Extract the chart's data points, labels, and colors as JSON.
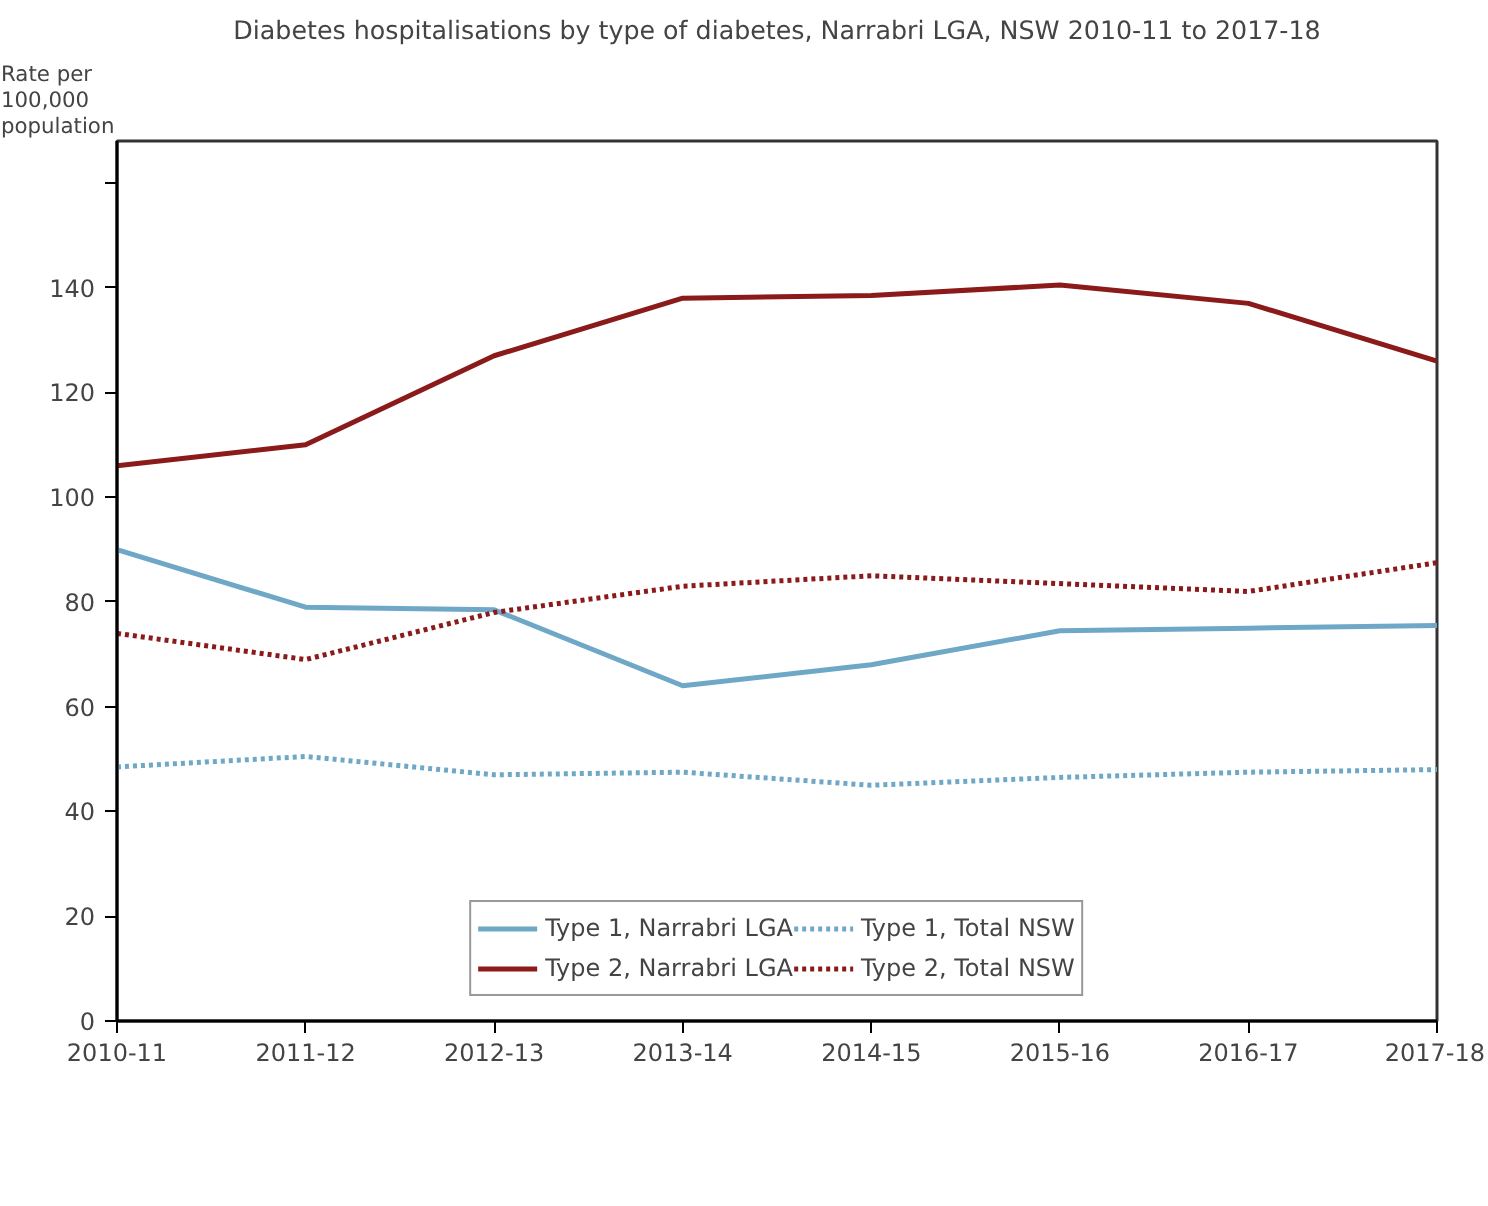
{
  "chart_data": {
    "type": "line",
    "title": "Diabetes hospitalisations by type of diabetes, Narrabri LGA, NSW 2010-11 to 2017-18",
    "ylabel": "Rate per 100,000 population",
    "categories": [
      "2010-11",
      "2011-12",
      "2012-13",
      "2013-14",
      "2014-15",
      "2015-16",
      "2016-17",
      "2017-18"
    ],
    "ylim": [
      0,
      168
    ],
    "yticks": [
      0,
      20,
      40,
      60,
      80,
      100,
      120,
      140,
      {
        "value": 160,
        "label": null
      }
    ],
    "legend": "bottom",
    "series": [
      {
        "name": "Type 1, Narrabri LGA",
        "color": "#6fa8c6",
        "line_style": "solid",
        "values": [
          90,
          79,
          78.5,
          64,
          68,
          74.5,
          75,
          75.5
        ]
      },
      {
        "name": "Type 1, Total NSW",
        "color": "#6fa8c6",
        "line_style": "dotted",
        "values": [
          48.5,
          50.5,
          47,
          47.5,
          45,
          46.5,
          47.5,
          48
        ]
      },
      {
        "name": "Type 2, Narrabri LGA",
        "color": "#8b1a1a",
        "line_style": "solid",
        "values": [
          106,
          110,
          127,
          138,
          138.5,
          140.5,
          137,
          126
        ]
      },
      {
        "name": "Type 2, Total NSW",
        "color": "#8b1a1a",
        "line_style": "dotted",
        "values": [
          74,
          69,
          78,
          83,
          85,
          83.5,
          82,
          87.5
        ]
      }
    ]
  }
}
